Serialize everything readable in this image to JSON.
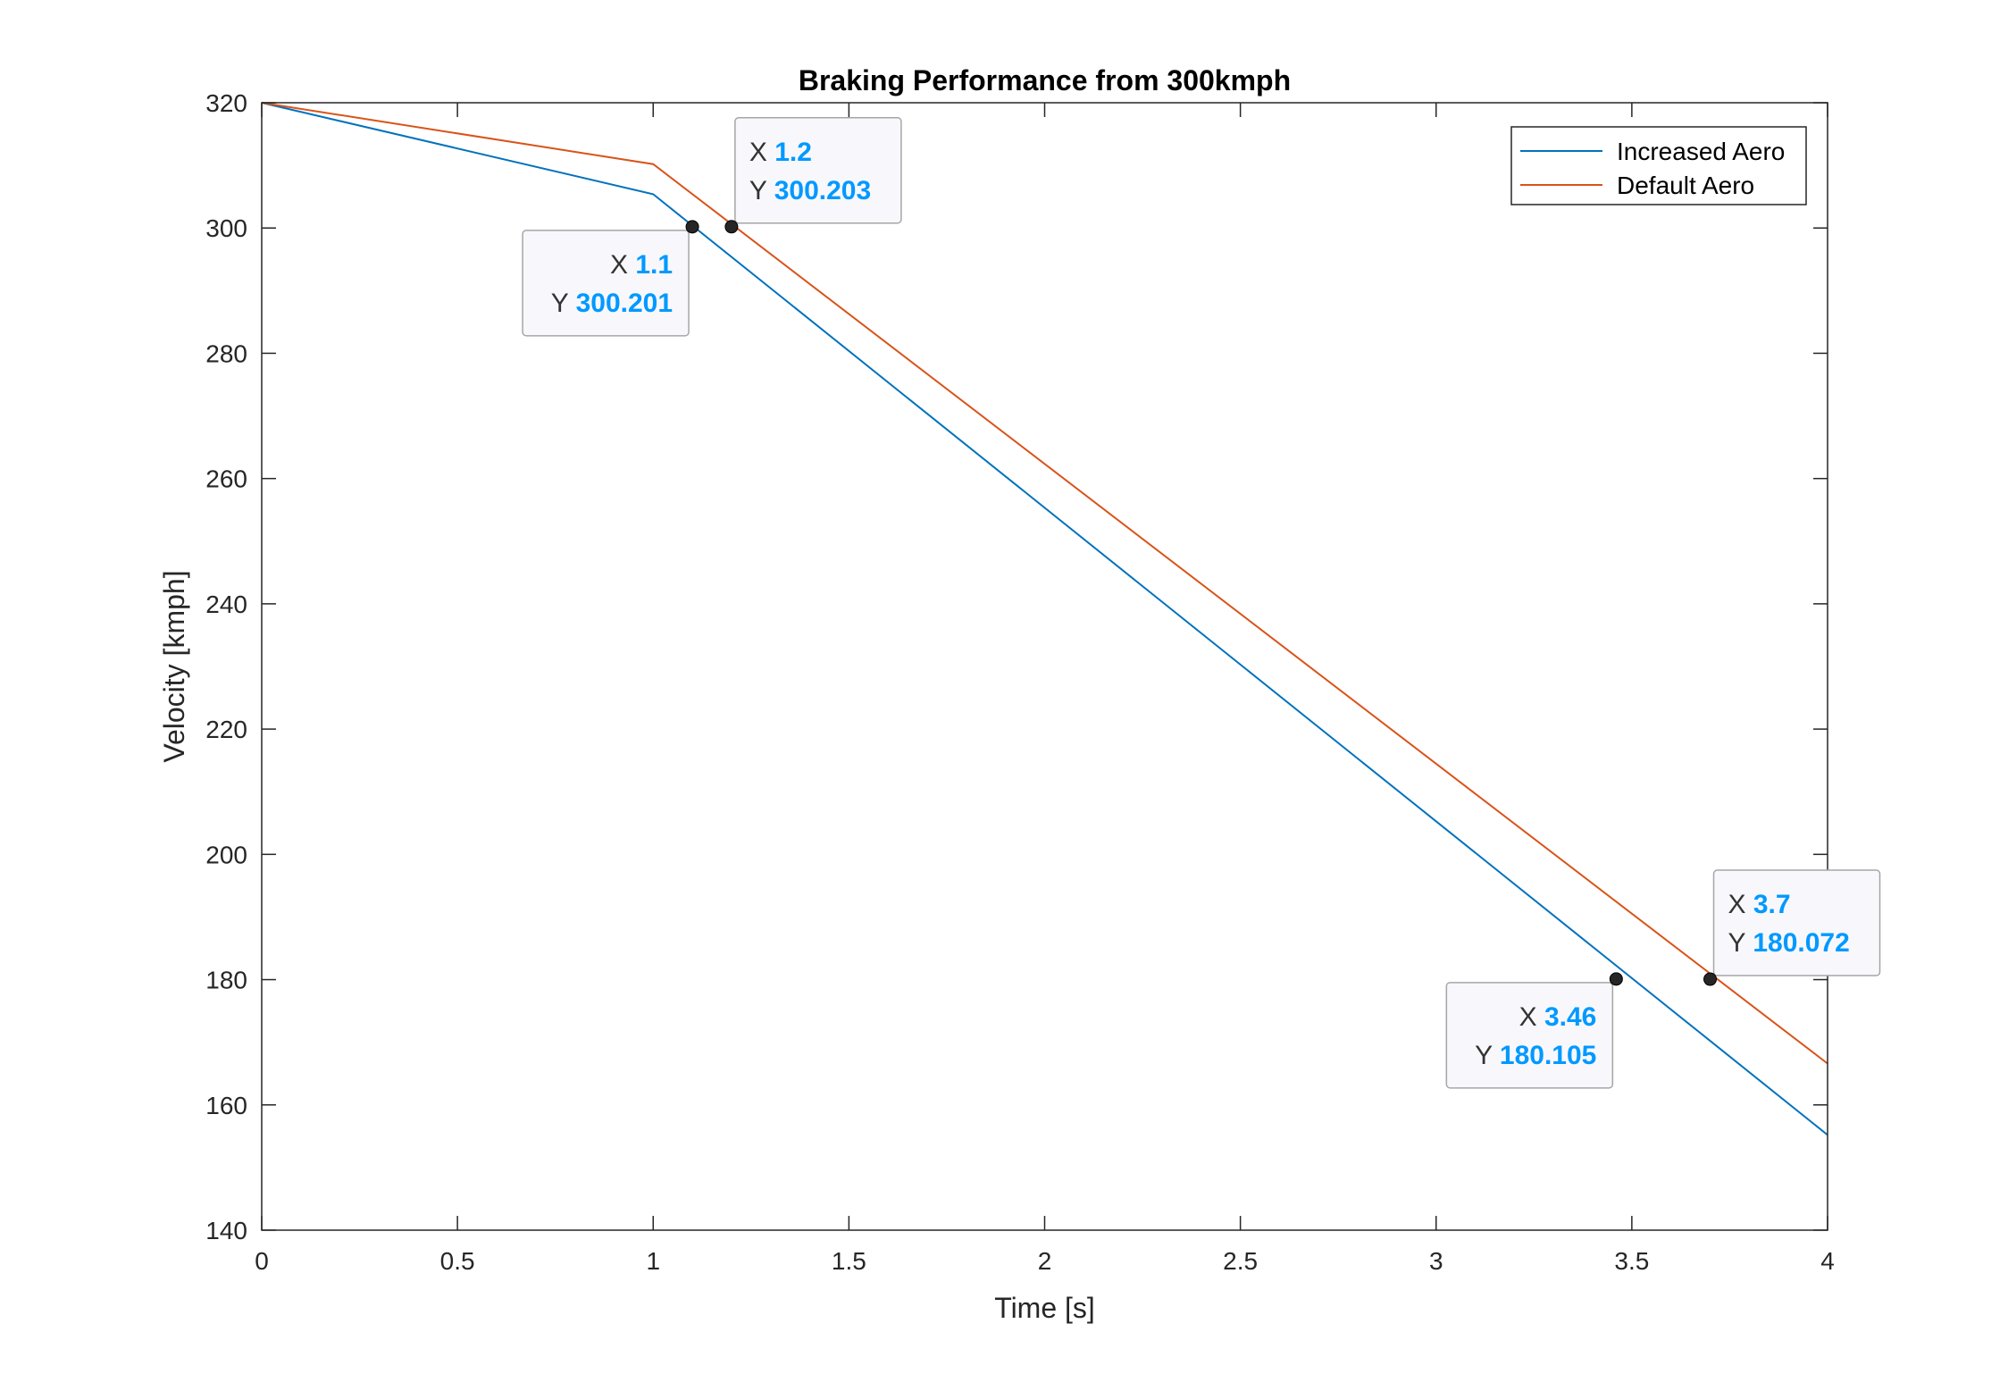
{
  "chart_data": {
    "type": "line",
    "title": "Braking Performance from 300kmph",
    "xlabel": "Time [s]",
    "ylabel": "Velocity [kmph]",
    "xlim": [
      0,
      4
    ],
    "ylim": [
      140,
      320
    ],
    "xticks": [
      "0",
      "0.5",
      "1",
      "1.5",
      "2",
      "2.5",
      "3",
      "3.5",
      "4"
    ],
    "yticks": [
      "140",
      "160",
      "180",
      "200",
      "220",
      "240",
      "260",
      "280",
      "300",
      "320"
    ],
    "grid": false,
    "legend": "top-right",
    "series": [
      {
        "name": "Increased Aero",
        "color": "#0072BD",
        "x": [
          0,
          1,
          4
        ],
        "y": [
          320,
          305.4,
          155.2
        ]
      },
      {
        "name": "Default Aero",
        "color": "#D95319",
        "x": [
          0,
          1,
          4
        ],
        "y": [
          320,
          310.2,
          166.6
        ]
      }
    ],
    "datatips": [
      {
        "series": "Increased Aero",
        "x_label": "X",
        "y_label": "Y",
        "x": "1.1",
        "y": "300.201",
        "align": "left"
      },
      {
        "series": "Default Aero",
        "x_label": "X",
        "y_label": "Y",
        "x": "1.2",
        "y": "300.203",
        "align": "right"
      },
      {
        "series": "Increased Aero",
        "x_label": "X",
        "y_label": "Y",
        "x": "3.46",
        "y": "180.105",
        "align": "left"
      },
      {
        "series": "Default Aero",
        "x_label": "X",
        "y_label": "Y",
        "x": "3.7",
        "y": "180.072",
        "align": "right"
      }
    ]
  }
}
